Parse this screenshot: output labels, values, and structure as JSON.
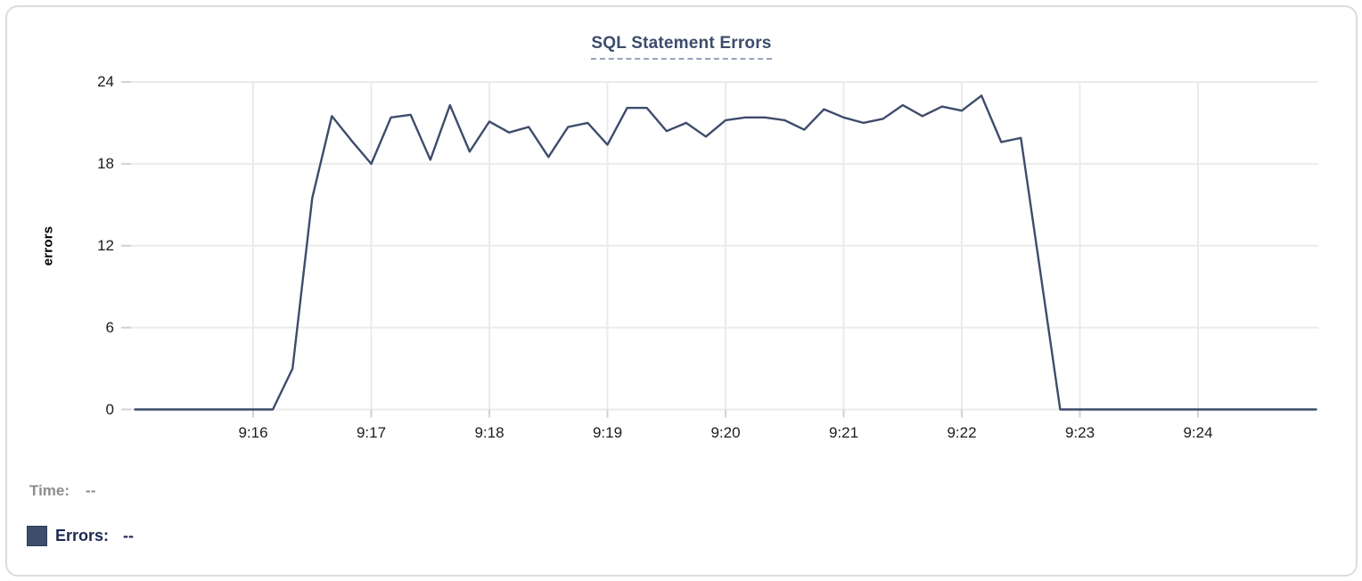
{
  "chart": {
    "title": "SQL Statement Errors"
  },
  "chart_data": {
    "type": "line",
    "title": "SQL Statement Errors",
    "xlabel": "",
    "ylabel": "errors",
    "ylim": [
      0,
      24
    ],
    "yticks": [
      0,
      6,
      12,
      18,
      24
    ],
    "xticks": [
      "9:16",
      "9:17",
      "9:18",
      "9:19",
      "9:20",
      "9:21",
      "9:22",
      "9:23",
      "9:24"
    ],
    "x_range": [
      "9:15:00",
      "9:25:00"
    ],
    "grid": true,
    "legend_position": "bottom-left",
    "series": [
      {
        "name": "Errors",
        "color": "#3e4c6b",
        "x": [
          "9:15:00",
          "9:15:10",
          "9:15:20",
          "9:15:30",
          "9:15:40",
          "9:15:50",
          "9:16:00",
          "9:16:10",
          "9:16:20",
          "9:16:30",
          "9:16:40",
          "9:16:50",
          "9:17:00",
          "9:17:10",
          "9:17:20",
          "9:17:30",
          "9:17:40",
          "9:17:50",
          "9:18:00",
          "9:18:10",
          "9:18:20",
          "9:18:30",
          "9:18:40",
          "9:18:50",
          "9:19:00",
          "9:19:10",
          "9:19:20",
          "9:19:30",
          "9:19:40",
          "9:19:50",
          "9:20:00",
          "9:20:10",
          "9:20:20",
          "9:20:30",
          "9:20:40",
          "9:20:50",
          "9:21:00",
          "9:21:10",
          "9:21:20",
          "9:21:30",
          "9:21:40",
          "9:21:50",
          "9:22:00",
          "9:22:10",
          "9:22:20",
          "9:22:30",
          "9:22:40",
          "9:22:50",
          "9:23:00",
          "9:23:10",
          "9:23:20",
          "9:23:30",
          "9:23:40",
          "9:23:50",
          "9:24:00",
          "9:24:10",
          "9:24:20",
          "9:24:30",
          "9:24:40",
          "9:24:50",
          "9:25:00"
        ],
        "values": [
          0,
          0,
          0,
          0,
          0,
          0,
          0,
          0,
          3,
          15.5,
          21.5,
          19.7,
          18,
          21.4,
          21.6,
          18.3,
          22.3,
          18.9,
          21.1,
          20.3,
          20.7,
          18.5,
          20.7,
          21,
          19.4,
          22.1,
          22.1,
          20.4,
          21,
          20,
          21.2,
          21.4,
          21.4,
          21.2,
          20.5,
          22,
          21.4,
          21,
          21.3,
          22.3,
          21.5,
          22.2,
          21.9,
          23,
          19.6,
          19.9,
          10,
          0,
          0,
          0,
          0,
          0,
          0,
          0,
          0,
          0,
          0,
          0,
          0,
          0,
          0
        ]
      }
    ]
  },
  "readout": {
    "time_label": "Time:",
    "time_value": "--",
    "errors_label": "Errors:",
    "errors_value": "--"
  },
  "colors": {
    "line": "#3e4c6b",
    "grid": "#ebebeb",
    "tick": "#d2d2d2",
    "title": "#3c4c6d",
    "axis_text": "#1c1c1c",
    "muted_text": "#8c8c8c",
    "legend_text": "#1c2951",
    "legend_swatch": "#3e4d6a",
    "card_border": "#dcdcdc"
  }
}
